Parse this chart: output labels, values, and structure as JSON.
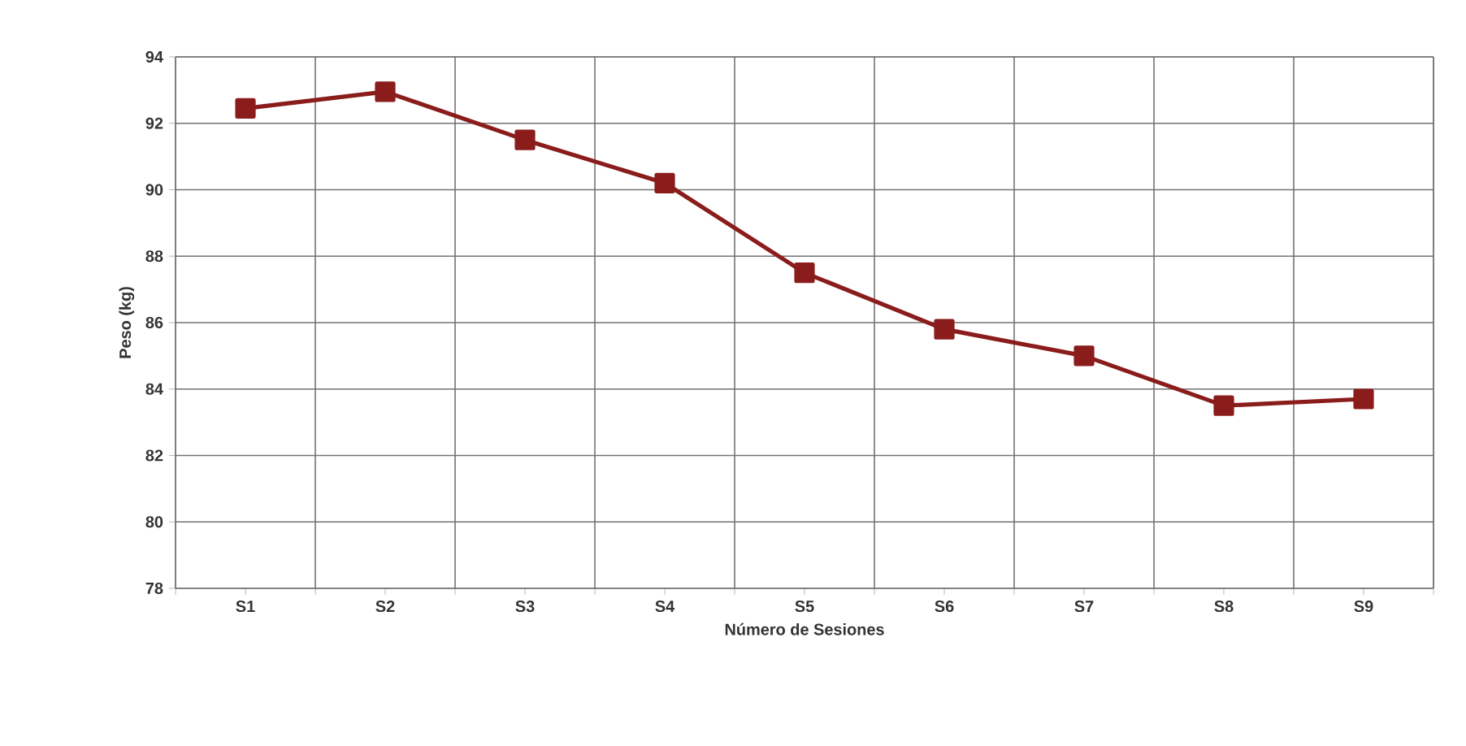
{
  "chart_data": {
    "type": "line",
    "xlabel": "Número de Sesiones",
    "ylabel": "Peso (kg)",
    "categories": [
      "S1",
      "S2",
      "S3",
      "S4",
      "S5",
      "S6",
      "S7",
      "S8",
      "S9"
    ],
    "series": [
      {
        "color": "#8b1c1c",
        "values": [
          92.45,
          92.95,
          91.5,
          90.2,
          87.5,
          85.8,
          85.0,
          83.5,
          83.7
        ]
      }
    ],
    "ylim": [
      78,
      94
    ],
    "yticks": [
      78,
      80,
      82,
      84,
      86,
      88,
      90,
      92,
      94
    ],
    "grid": true,
    "marker": "square",
    "line_style": "solid"
  }
}
